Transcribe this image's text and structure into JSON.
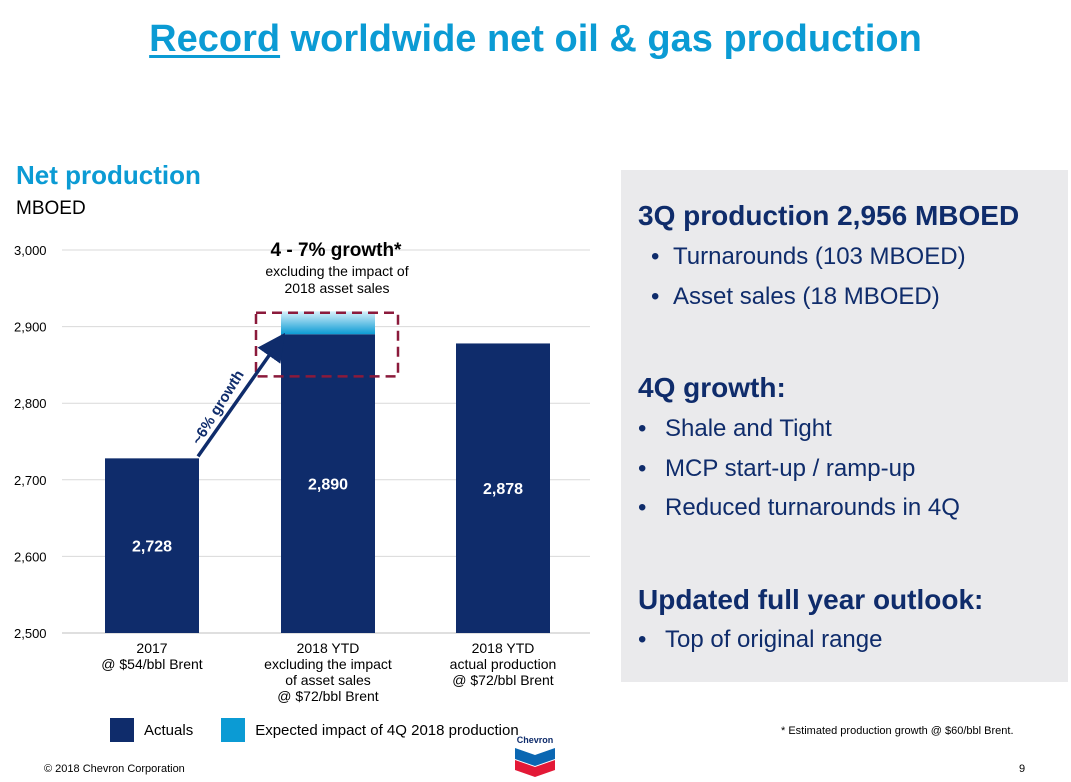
{
  "title": {
    "highlight": "Record",
    "rest": " worldwide net oil & gas production"
  },
  "chart_heading": "Net production",
  "chart_unit": "MBOED",
  "chart_data": {
    "type": "bar",
    "ylim": [
      2500,
      3000
    ],
    "yticks": [
      "3,000",
      "2,900",
      "2,800",
      "2,700",
      "2,600",
      "2,500"
    ],
    "ytick_values": [
      3000,
      2900,
      2800,
      2700,
      2600,
      2500
    ],
    "categories": [
      [
        "2017",
        "@ $54/bbl Brent"
      ],
      [
        "2018 YTD",
        "excluding the impact",
        "of asset sales",
        "@ $72/bbl Brent"
      ],
      [
        "2018 YTD",
        "actual production",
        "@ $72/bbl Brent"
      ]
    ],
    "series": [
      {
        "name": "Actuals",
        "color": "#0f2c6b",
        "values": [
          2728,
          2890,
          2878
        ],
        "labels": [
          "2,728",
          "2,890",
          "2,878"
        ]
      },
      {
        "name": "Expected impact of 4Q 2018 production",
        "color": "#0b9bd4",
        "values": [
          0,
          30,
          0
        ]
      }
    ],
    "annotations": {
      "growth_title": "4 - 7% growth*",
      "growth_sub1": "excluding the impact of",
      "growth_sub2": "2018 asset sales",
      "arrow_label": "~6% growth"
    },
    "grid": true
  },
  "legend": {
    "actuals": "Actuals",
    "expected": "Expected impact of 4Q 2018 production"
  },
  "panel": {
    "h1": "3Q production 2,956 MBOED",
    "b1": "Turnarounds (103 MBOED)",
    "b2": "Asset sales (18 MBOED)",
    "h2": "4Q growth:",
    "b3": "Shale and Tight",
    "b4": "MCP start-up / ramp-up",
    "b5": "Reduced turnarounds in 4Q",
    "h3": "Updated full year outlook:",
    "b6": "Top of original range",
    "bullet": "•"
  },
  "footnote": "* Estimated production growth @ $60/bbl Brent.",
  "copyright": "© 2018 Chevron Corporation",
  "page_number": "9",
  "logo_text": "Chevron",
  "colors": {
    "accent": "#0b9bd4",
    "navy": "#0f2c6b",
    "dashed_box": "#8b1a3b",
    "panel_bg": "#eaeaec"
  }
}
